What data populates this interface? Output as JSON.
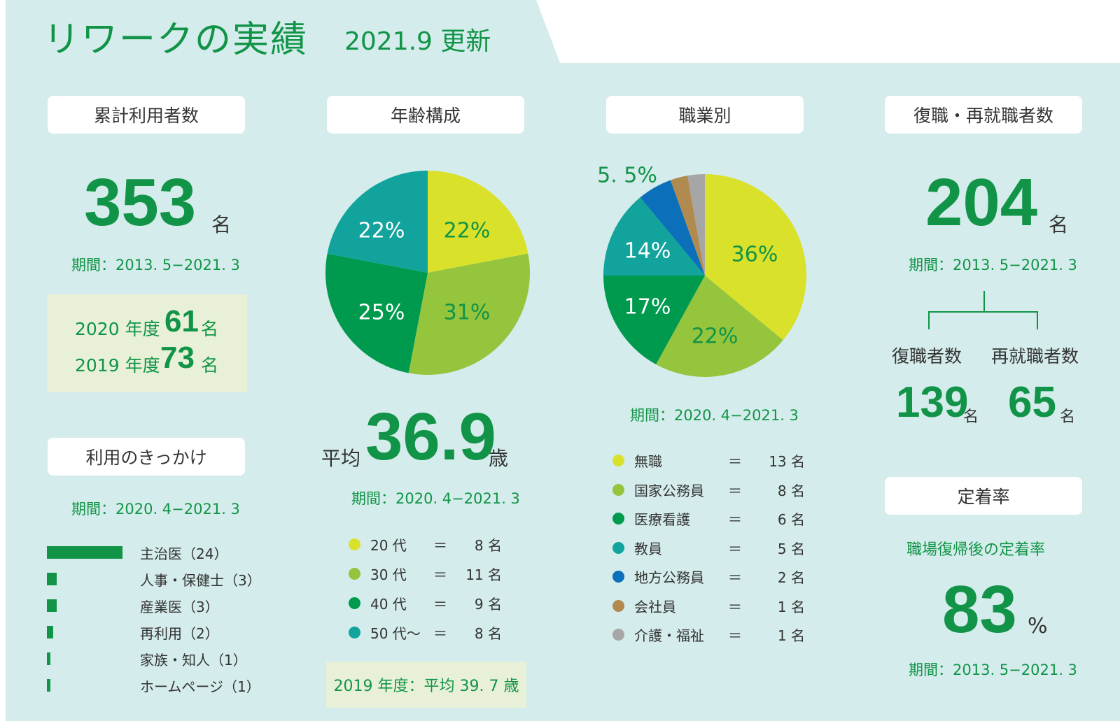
{
  "header": {
    "title": "リワークの実績",
    "updated": "2021.9 更新"
  },
  "colors": {
    "panel": "#d4eceb",
    "accent": "#119447"
  },
  "cumulative": {
    "label": "累計利用者数",
    "value": "353",
    "unit": "名",
    "period": "期間：2013. 5−2021. 3",
    "years": [
      {
        "year": "2020 年度",
        "value": "61",
        "unit": "名"
      },
      {
        "year": "2019 年度",
        "value": "73",
        "unit": "名"
      }
    ]
  },
  "trigger": {
    "label": "利用のきっかけ",
    "period": "期間：2020. 4−2021. 3",
    "items": [
      {
        "label": "主治医（24）",
        "value": 24
      },
      {
        "label": "人事・保健士（3）",
        "value": 3
      },
      {
        "label": "産業医（3）",
        "value": 3
      },
      {
        "label": "再利用（2）",
        "value": 2
      },
      {
        "label": "家族・知人（1）",
        "value": 1
      },
      {
        "label": "ホームページ（1）",
        "value": 1
      }
    ]
  },
  "age": {
    "label": "年齢構成",
    "avg_prefix": "平均",
    "avg": "36.9",
    "avg_unit": "歳",
    "period": "期間：2020. 4−2021. 3",
    "legend": [
      {
        "name": "20 代",
        "eq": "＝",
        "count": "8 名",
        "color": "#d9e12b"
      },
      {
        "name": "30 代",
        "eq": "＝",
        "count": "11 名",
        "color": "#95c53d"
      },
      {
        "name": "40 代",
        "eq": "＝",
        "count": "9 名",
        "color": "#009a4e"
      },
      {
        "name": "50 代〜",
        "eq": "＝",
        "count": "8 名",
        "color": "#11a39c"
      }
    ],
    "note": "2019 年度：平均 39. 7 歳"
  },
  "occupation": {
    "label": "職業別",
    "period": "期間：2020. 4−2021. 3",
    "legend": [
      {
        "name": "無職",
        "eq": "＝",
        "count": "13 名",
        "color": "#d9e12b"
      },
      {
        "name": "国家公務員",
        "eq": "＝",
        "count": "8 名",
        "color": "#95c53d"
      },
      {
        "name": "医療看護",
        "eq": "＝",
        "count": "6 名",
        "color": "#009a4e"
      },
      {
        "name": "教員",
        "eq": "＝",
        "count": "5 名",
        "color": "#11a39c"
      },
      {
        "name": "地方公務員",
        "eq": "＝",
        "count": "2 名",
        "color": "#0b6fba"
      },
      {
        "name": "会社員",
        "eq": "＝",
        "count": "1 名",
        "color": "#b08a4e"
      },
      {
        "name": "介護・福祉",
        "eq": "＝",
        "count": "1 名",
        "color": "#a6a6a6"
      }
    ]
  },
  "return": {
    "label": "復職・再就職者数",
    "value": "204",
    "unit": "名",
    "period": "期間：2013. 5−2021. 3",
    "sub": [
      {
        "label": "復職者数",
        "value": "139",
        "unit": "名"
      },
      {
        "label": "再就職者数",
        "value": "65",
        "unit": "名"
      }
    ]
  },
  "retention": {
    "label": "定着率",
    "sublabel": "職場復帰後の定着率",
    "value": "83",
    "unit": "%",
    "period": "期間：2013. 5−2021. 3"
  },
  "chart_data": [
    {
      "type": "pie",
      "title": "年齢構成",
      "categories": [
        "20 代",
        "30 代",
        "40 代",
        "50 代〜"
      ],
      "values": [
        22,
        31,
        25,
        22
      ],
      "labels": [
        "22%",
        "31%",
        "25%",
        "22%"
      ],
      "colors": [
        "#d9e12b",
        "#95c53d",
        "#009a4e",
        "#11a39c"
      ],
      "label_colors": [
        "#119447",
        "#119447",
        "#ffffff",
        "#ffffff"
      ]
    },
    {
      "type": "pie",
      "title": "職業別",
      "categories": [
        "無職",
        "国家公務員",
        "医療看護",
        "教員",
        "地方公務員",
        "会社員",
        "介護・福祉"
      ],
      "values": [
        36,
        22,
        17,
        14,
        5.5,
        2.75,
        2.75
      ],
      "labels": [
        "36%",
        "22%",
        "17%",
        "14%",
        "5. 5%"
      ],
      "colors": [
        "#d9e12b",
        "#95c53d",
        "#009a4e",
        "#11a39c",
        "#0b6fba",
        "#b08a4e",
        "#a6a6a6"
      ],
      "label_colors": [
        "#119447",
        "#119447",
        "#ffffff",
        "#ffffff",
        "#119447"
      ]
    },
    {
      "type": "bar",
      "title": "利用のきっかけ",
      "categories": [
        "主治医",
        "人事・保健士",
        "産業医",
        "再利用",
        "家族・知人",
        "ホームページ"
      ],
      "values": [
        24,
        3,
        3,
        2,
        1,
        1
      ]
    }
  ]
}
